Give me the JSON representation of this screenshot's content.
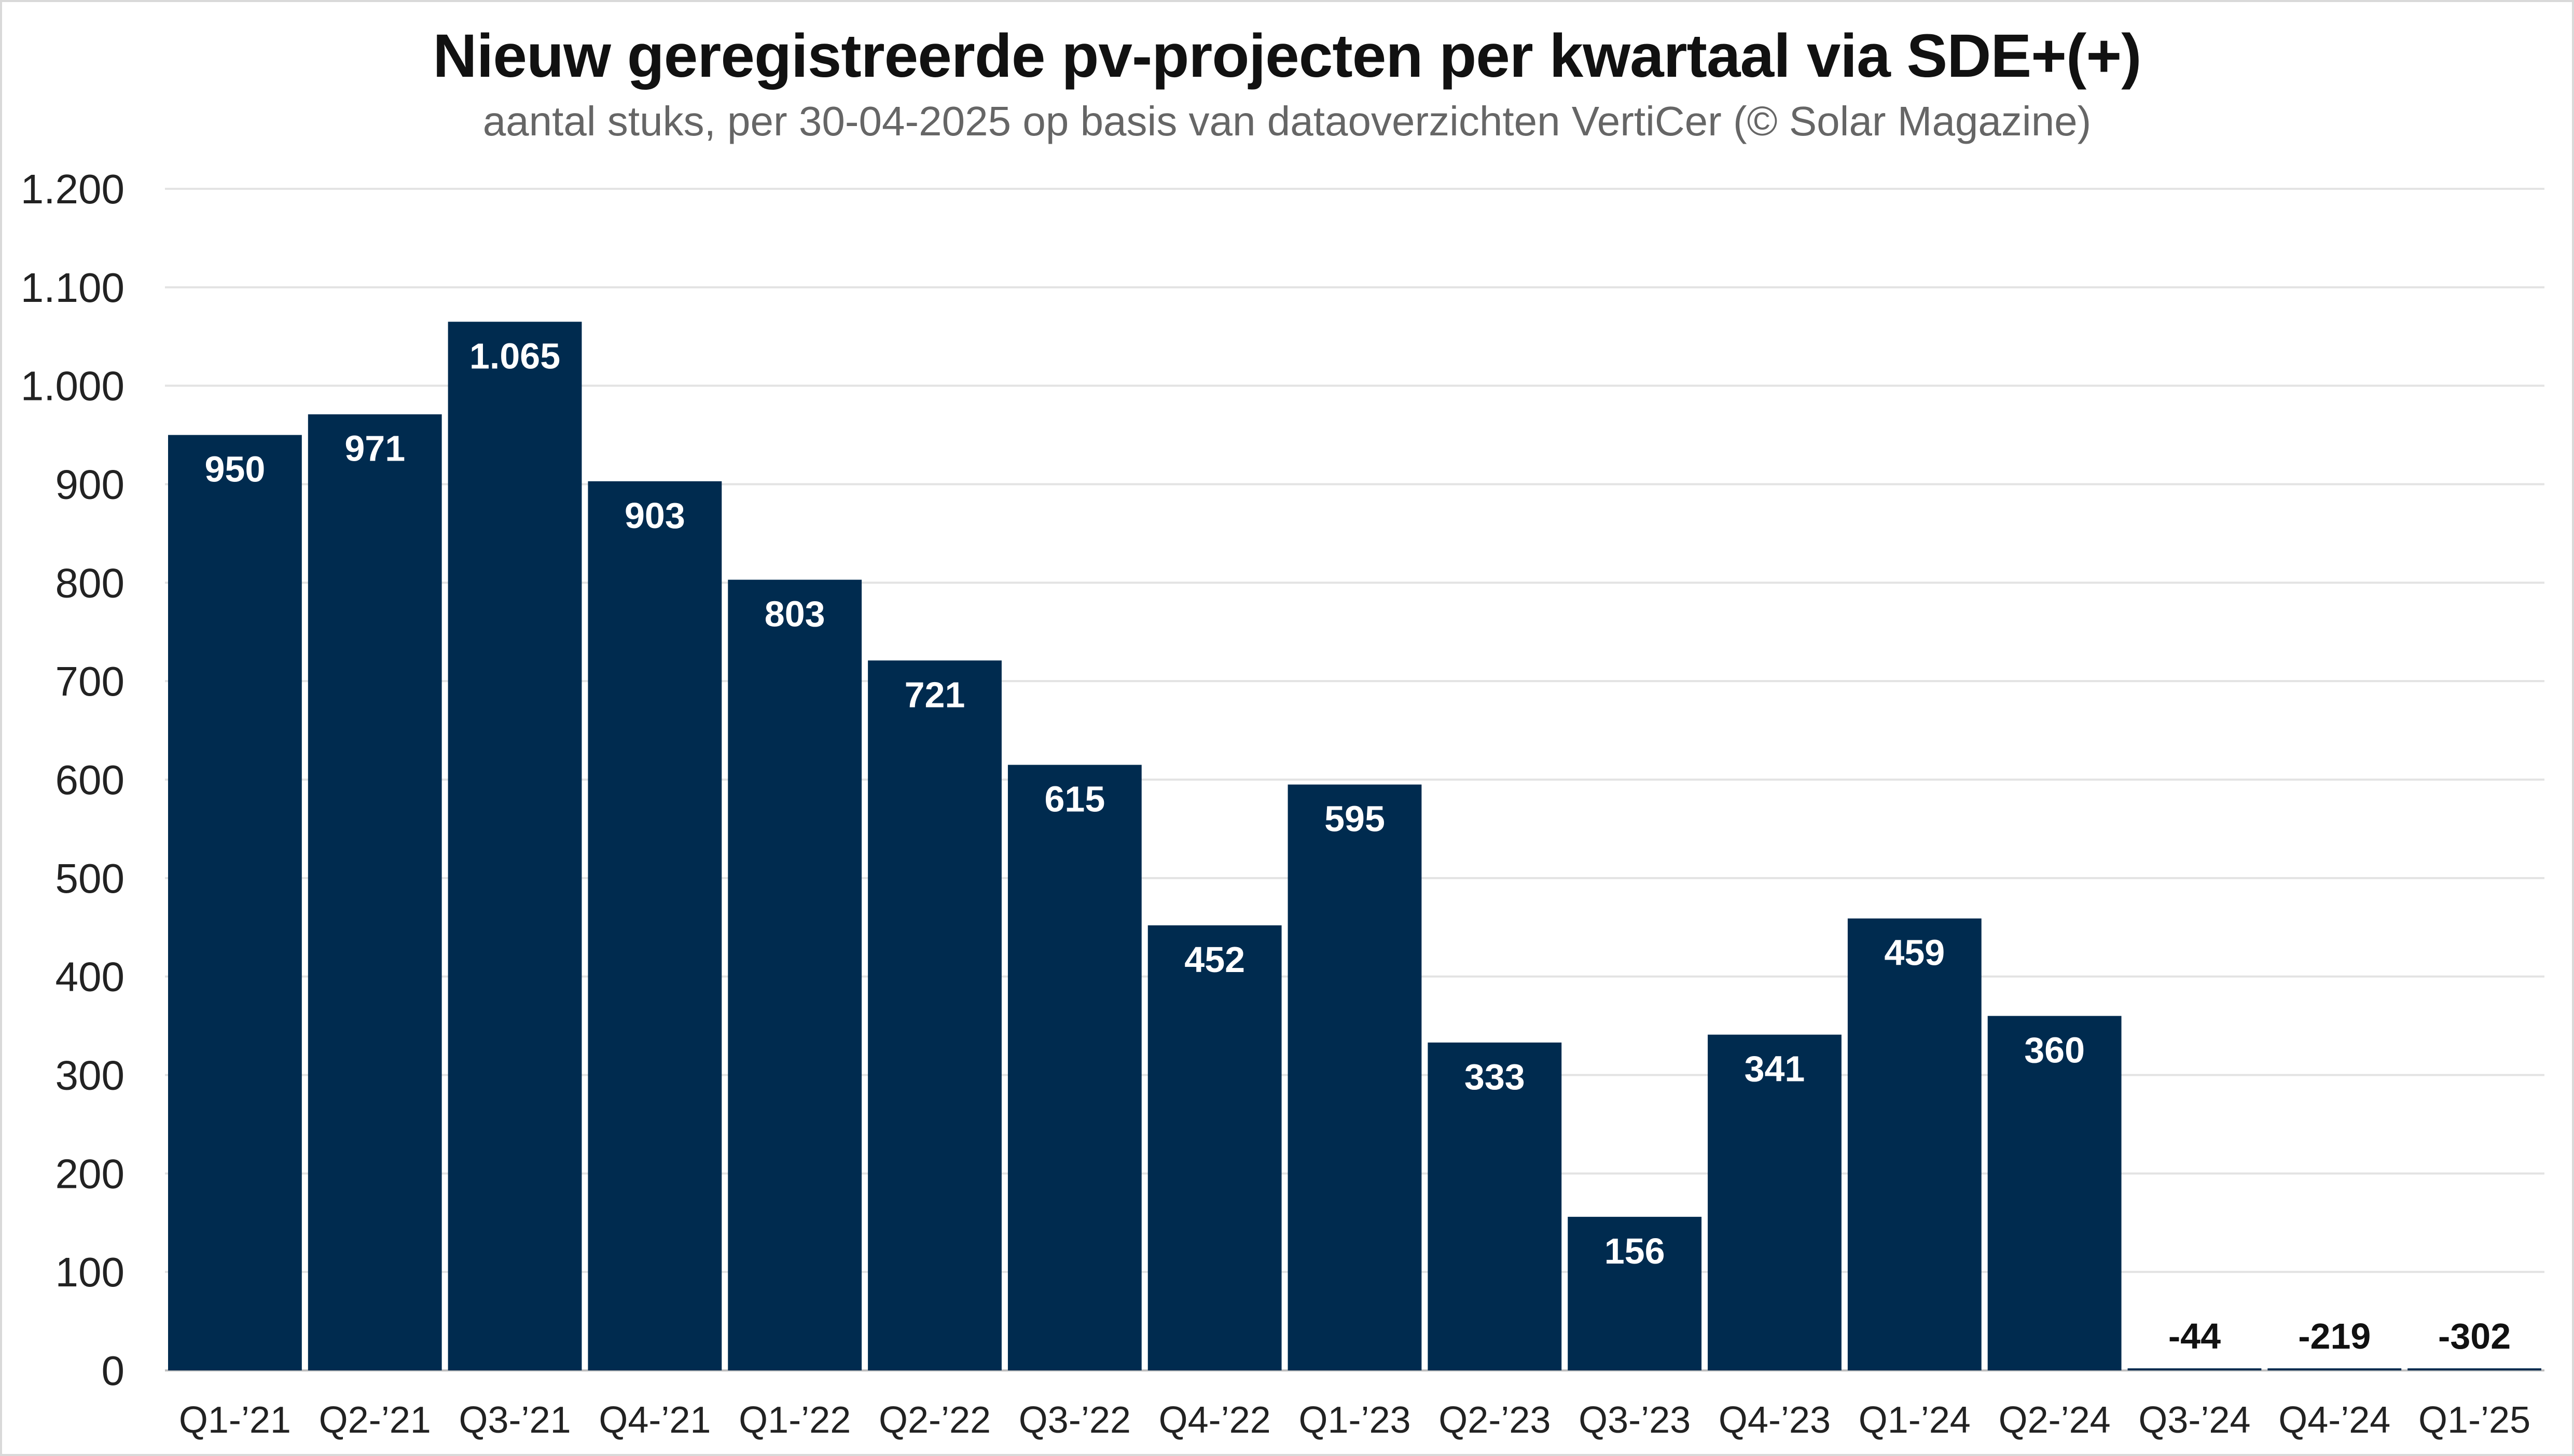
{
  "chart_data": {
    "type": "bar",
    "title": "Nieuw geregistreerde pv-projecten per kwartaal via SDE+(+)",
    "subtitle": "aantal stuks, per 30-04-2025 op basis van dataoverzichten VertiCer (© Solar Magazine)",
    "xlabel": "",
    "ylabel": "",
    "ylim": [
      0,
      1200
    ],
    "yticks": [
      0,
      100,
      200,
      300,
      400,
      500,
      600,
      700,
      800,
      900,
      1000,
      1100,
      1200
    ],
    "ytick_labels": [
      "0",
      "100",
      "200",
      "300",
      "400",
      "500",
      "600",
      "700",
      "800",
      "900",
      "1.000",
      "1.100",
      "1.200"
    ],
    "grid": true,
    "bar_color": "#002b4f",
    "categories": [
      "Q1-’21",
      "Q2-’21",
      "Q3-’21",
      "Q4-’21",
      "Q1-’22",
      "Q2-’22",
      "Q3-’22",
      "Q4-’22",
      "Q1-’23",
      "Q2-’23",
      "Q3-’23",
      "Q4-’23",
      "Q1-’24",
      "Q2-’24",
      "Q3-’24",
      "Q4-’24",
      "Q1-’25"
    ],
    "values": [
      950,
      971,
      1065,
      903,
      803,
      721,
      615,
      452,
      595,
      333,
      156,
      341,
      459,
      360,
      -44,
      -219,
      -302
    ],
    "value_labels": [
      "950",
      "971",
      "1.065",
      "903",
      "803",
      "721",
      "615",
      "452",
      "595",
      "333",
      "156",
      "341",
      "459",
      "360",
      "-44",
      "-219",
      "-302"
    ]
  }
}
